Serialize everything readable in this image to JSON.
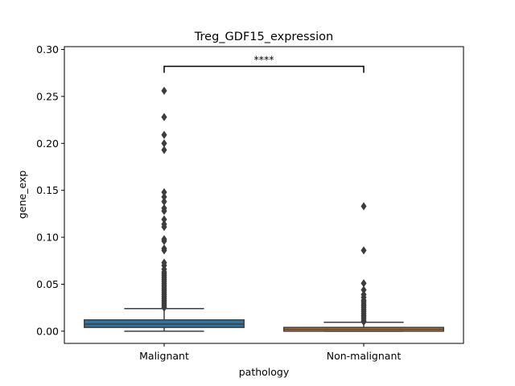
{
  "chart_data": {
    "type": "boxplot",
    "title": "Treg_GDF15_expression",
    "xlabel": "pathology",
    "ylabel": "gene_exp",
    "categories": [
      "Malignant",
      "Non-malignant"
    ],
    "ylim": [
      -0.013,
      0.303
    ],
    "yticks": [
      "0.00",
      "0.05",
      "0.10",
      "0.15",
      "0.20",
      "0.25",
      "0.30"
    ],
    "ytick_values": [
      0.0,
      0.05,
      0.1,
      0.15,
      0.2,
      0.25,
      0.3
    ],
    "grid": false,
    "significance": {
      "label": "****",
      "from": "Malignant",
      "to": "Non-malignant",
      "y": 0.282
    },
    "boxes": [
      {
        "category": "Malignant",
        "color": "#3274a1",
        "q1": 0.004,
        "median": 0.0075,
        "q3": 0.012,
        "whisker_low": 0.0,
        "whisker_high": 0.024,
        "outliers": [
          0.256,
          0.228,
          0.209,
          0.2,
          0.193,
          0.148,
          0.143,
          0.138,
          0.131,
          0.128,
          0.119,
          0.114,
          0.111,
          0.098,
          0.096,
          0.088,
          0.086,
          0.073,
          0.07,
          0.066,
          0.063,
          0.061,
          0.059,
          0.057,
          0.055,
          0.053,
          0.051,
          0.049,
          0.047,
          0.045,
          0.043,
          0.041,
          0.039,
          0.037,
          0.035,
          0.033,
          0.031,
          0.029,
          0.027,
          0.025
        ]
      },
      {
        "category": "Non-malignant",
        "color": "#e1812c",
        "q1": 0.0,
        "median": 0.002,
        "q3": 0.004,
        "whisker_low": 0.0,
        "whisker_high": 0.0095,
        "outliers": [
          0.133,
          0.086,
          0.051,
          0.044,
          0.039,
          0.036,
          0.033,
          0.031,
          0.029,
          0.027,
          0.025,
          0.023,
          0.021,
          0.019,
          0.017,
          0.015,
          0.013,
          0.011,
          0.01
        ]
      }
    ]
  }
}
